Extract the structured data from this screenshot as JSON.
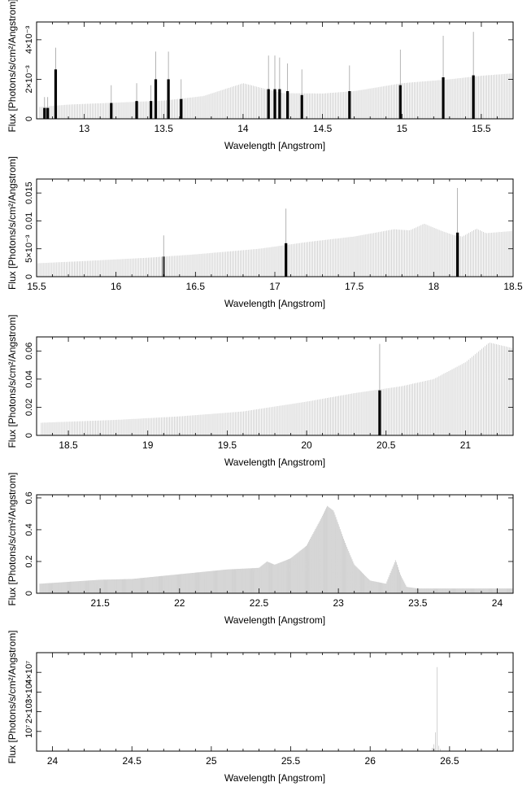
{
  "page_background": "#ffffff",
  "colors": {
    "continuum": "#c8c8c8",
    "line_bar": "#000000",
    "line_stem": "#a0a0a0",
    "axis": "#000000"
  },
  "chart_data": [
    {
      "type": "bar",
      "xlabel": "Wavelength [Angstrom]",
      "ylabel": "Flux [Photons/s/cm²/Angstrom]",
      "xlim": [
        12.7,
        15.7
      ],
      "ylim": [
        0,
        0.0049
      ],
      "xticks": [
        13,
        13.5,
        14,
        14.5,
        15,
        15.5
      ],
      "xtick_labels": [
        "13",
        "13.5",
        "14",
        "14.5",
        "15",
        "15.5"
      ],
      "yticks": [
        0,
        0.002,
        0.004
      ],
      "ytick_labels": [
        "0",
        "2×10⁻³",
        "4×10⁻³"
      ],
      "continuum": [
        [
          12.72,
          0.0006
        ],
        [
          12.9,
          0.00072
        ],
        [
          13.2,
          0.00082
        ],
        [
          13.5,
          0.00092
        ],
        [
          13.75,
          0.00115
        ],
        [
          14.0,
          0.0018
        ],
        [
          14.1,
          0.0016
        ],
        [
          14.25,
          0.0013
        ],
        [
          14.5,
          0.00128
        ],
        [
          14.7,
          0.0014
        ],
        [
          15.0,
          0.0018
        ],
        [
          15.3,
          0.002
        ],
        [
          15.5,
          0.00218
        ],
        [
          15.7,
          0.0023
        ]
      ],
      "lines": [
        {
          "x": 12.75,
          "bar": 0.00055,
          "stem": 0.0011
        },
        {
          "x": 12.77,
          "bar": 0.00055,
          "stem": 0.0011
        },
        {
          "x": 12.82,
          "bar": 0.0025,
          "stem": 0.0036
        },
        {
          "x": 13.17,
          "bar": 0.0008,
          "stem": 0.0017
        },
        {
          "x": 13.33,
          "bar": 0.0009,
          "stem": 0.0018
        },
        {
          "x": 13.42,
          "bar": 0.0009,
          "stem": 0.0017
        },
        {
          "x": 13.45,
          "bar": 0.002,
          "stem": 0.0034
        },
        {
          "x": 13.53,
          "bar": 0.002,
          "stem": 0.0034
        },
        {
          "x": 13.61,
          "bar": 0.001,
          "stem": 0.002
        },
        {
          "x": 14.16,
          "bar": 0.0015,
          "stem": 0.0032
        },
        {
          "x": 14.2,
          "bar": 0.0015,
          "stem": 0.0032
        },
        {
          "x": 14.23,
          "bar": 0.0015,
          "stem": 0.0031
        },
        {
          "x": 14.28,
          "bar": 0.0014,
          "stem": 0.0028
        },
        {
          "x": 14.37,
          "bar": 0.0012,
          "stem": 0.0025
        },
        {
          "x": 14.67,
          "bar": 0.0014,
          "stem": 0.0027
        },
        {
          "x": 14.99,
          "bar": 0.0017,
          "stem": 0.0035
        },
        {
          "x": 15.26,
          "bar": 0.0021,
          "stem": 0.0042
        },
        {
          "x": 15.45,
          "bar": 0.0022,
          "stem": 0.0044
        }
      ]
    },
    {
      "type": "bar",
      "xlabel": "Wavelength [Angstrom]",
      "ylabel": "Flux [Photons/s/cm²/Angstrom]",
      "xlim": [
        15.5,
        18.5
      ],
      "ylim": [
        0,
        0.0175
      ],
      "xticks": [
        15.5,
        16,
        16.5,
        17,
        17.5,
        18,
        18.5
      ],
      "xtick_labels": [
        "15.5",
        "16",
        "16.5",
        "17",
        "17.5",
        "18",
        "18.5"
      ],
      "yticks": [
        0,
        0.005,
        0.01,
        0.015
      ],
      "ytick_labels": [
        "0",
        "5×10⁻³",
        "0.01",
        "0.015"
      ],
      "continuum": [
        [
          15.5,
          0.0024
        ],
        [
          15.8,
          0.0028
        ],
        [
          16.2,
          0.0034
        ],
        [
          16.5,
          0.004
        ],
        [
          16.9,
          0.005
        ],
        [
          17.2,
          0.0062
        ],
        [
          17.5,
          0.0072
        ],
        [
          17.75,
          0.0085
        ],
        [
          17.85,
          0.0083
        ],
        [
          17.94,
          0.0095
        ],
        [
          18.05,
          0.0082
        ],
        [
          18.12,
          0.0075
        ],
        [
          18.18,
          0.0072
        ],
        [
          18.27,
          0.0086
        ],
        [
          18.33,
          0.0078
        ],
        [
          18.5,
          0.0082
        ]
      ],
      "lines": [
        {
          "x": 16.3,
          "bar": 0.0036,
          "stem": 0.0074,
          "gray": true
        },
        {
          "x": 17.07,
          "bar": 0.006,
          "stem": 0.0122
        },
        {
          "x": 18.15,
          "bar": 0.0079,
          "stem": 0.0159
        }
      ]
    },
    {
      "type": "bar",
      "xlabel": "Wavelength [Angstrom]",
      "ylabel": "Flux [Photons/s/cm²/Angstrom]",
      "xlim": [
        18.3,
        21.3
      ],
      "ylim": [
        0,
        0.07
      ],
      "xticks": [
        18.5,
        19,
        19.5,
        20,
        20.5,
        21
      ],
      "xtick_labels": [
        "18.5",
        "19",
        "19.5",
        "20",
        "20.5",
        "21"
      ],
      "yticks": [
        0,
        0.02,
        0.04,
        0.06
      ],
      "ytick_labels": [
        "0",
        "0.02",
        "0.04",
        "0.06"
      ],
      "continuum": [
        [
          18.33,
          0.009
        ],
        [
          18.8,
          0.011
        ],
        [
          19.2,
          0.0135
        ],
        [
          19.6,
          0.017
        ],
        [
          20.0,
          0.024
        ],
        [
          20.3,
          0.03
        ],
        [
          20.6,
          0.035
        ],
        [
          20.8,
          0.04
        ],
        [
          21.0,
          0.052
        ],
        [
          21.15,
          0.066
        ],
        [
          21.3,
          0.062
        ]
      ],
      "lines": [
        {
          "x": 20.46,
          "bar": 0.032,
          "stem": 0.065
        }
      ]
    },
    {
      "type": "area",
      "xlabel": "Wavelength [Angstrom]",
      "ylabel": "Flux [Photons/s/cm²/Angstrom]",
      "xlim": [
        21.1,
        24.1
      ],
      "ylim": [
        0,
        0.62
      ],
      "xticks": [
        21.5,
        22,
        22.5,
        23,
        23.5,
        24
      ],
      "xtick_labels": [
        "21.5",
        "22",
        "22.5",
        "23",
        "23.5",
        "24"
      ],
      "yticks": [
        0,
        0.2,
        0.4,
        0.6
      ],
      "ytick_labels": [
        "0",
        "0.2",
        "0.4",
        "0.6"
      ],
      "continuum": [
        [
          21.12,
          0.06
        ],
        [
          21.5,
          0.085
        ],
        [
          21.7,
          0.09
        ],
        [
          22.0,
          0.12
        ],
        [
          22.3,
          0.15
        ],
        [
          22.5,
          0.16
        ],
        [
          22.55,
          0.2
        ],
        [
          22.6,
          0.18
        ],
        [
          22.7,
          0.22
        ],
        [
          22.8,
          0.3
        ],
        [
          22.88,
          0.45
        ],
        [
          22.93,
          0.55
        ],
        [
          22.97,
          0.52
        ],
        [
          23.03,
          0.35
        ],
        [
          23.1,
          0.18
        ],
        [
          23.2,
          0.08
        ],
        [
          23.3,
          0.06
        ],
        [
          23.34,
          0.16
        ],
        [
          23.36,
          0.21
        ],
        [
          23.39,
          0.12
        ],
        [
          23.43,
          0.04
        ],
        [
          23.5,
          0.03
        ],
        [
          24.1,
          0.03
        ]
      ],
      "lines": []
    },
    {
      "type": "bar",
      "xlabel": "Wavelength [Angstrom]",
      "ylabel": "Flux [Photons/s/cm²/Angstrom]",
      "xlim": [
        23.9,
        26.9
      ],
      "ylim": [
        0,
        50000000
      ],
      "xticks": [
        24,
        24.5,
        25,
        25.5,
        26,
        26.5
      ],
      "xtick_labels": [
        "24",
        "24.5",
        "25",
        "25.5",
        "26",
        "26.5"
      ],
      "yticks": [
        10000000,
        20000000,
        30000000,
        40000000
      ],
      "ytick_labels": [
        "10⁷",
        "2×10⁷",
        "3×10⁷",
        "4×10⁷"
      ],
      "continuum": [
        [
          26.38,
          0
        ],
        [
          26.41,
          5000000
        ],
        [
          26.42,
          49000000
        ],
        [
          26.43,
          3000000
        ],
        [
          26.45,
          0
        ]
      ],
      "lines": []
    }
  ]
}
